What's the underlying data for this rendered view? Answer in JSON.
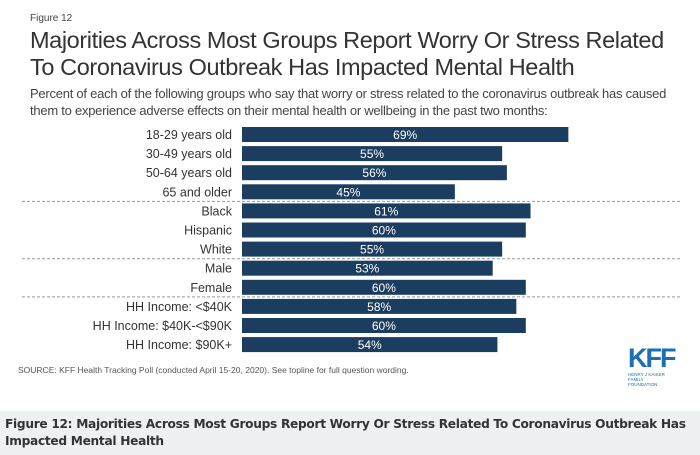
{
  "figure_label": "Figure 12",
  "chart_data": {
    "type": "bar",
    "orientation": "horizontal",
    "title": "Majorities Across Most Groups Report Worry Or Stress Related To Coronavirus Outbreak Has Impacted Mental Health",
    "subtitle": "Percent of each of the following groups who say that worry or stress related to the coronavirus outbreak has caused them to experience adverse effects on their mental health or wellbeing in the past two months:",
    "categories": [
      "18-29 years old",
      "30-49 years old",
      "50-64 years old",
      "65 and older",
      "Black",
      "Hispanic",
      "White",
      "Male",
      "Female",
      "HH Income: <$40K",
      "HH Income: $40K-<$90K",
      "HH Income: $90K+"
    ],
    "values": [
      69,
      55,
      56,
      45,
      61,
      60,
      55,
      53,
      60,
      58,
      60,
      54
    ],
    "value_labels": [
      "69%",
      "55%",
      "56%",
      "45%",
      "61%",
      "60%",
      "55%",
      "53%",
      "60%",
      "58%",
      "60%",
      "54%"
    ],
    "group_separators_after": [
      3,
      6,
      8
    ],
    "xlim": [
      0,
      100
    ],
    "grid": false,
    "bar_color": "#1b3d5f"
  },
  "source": "SOURCE: KFF Health Tracking Poll (conducted April 15-20, 2020). See topline for full question wording.",
  "logo": {
    "text": "KFF",
    "subtext": "HENRY J KAISER FAMILY FOUNDATION"
  },
  "caption": "Figure 12: Majorities Across Most Groups Report Worry Or Stress Related To Coronavirus Outbreak Has Impacted Mental Health"
}
